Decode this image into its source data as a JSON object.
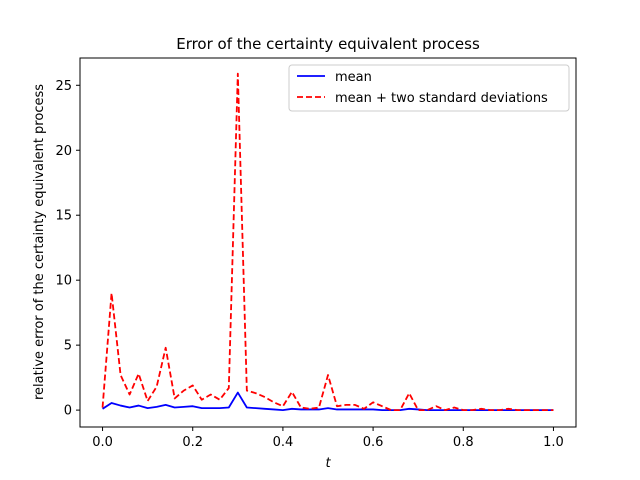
{
  "chart_data": {
    "type": "line",
    "title": "Error of the certainty equivalent process",
    "xlabel": "t",
    "ylabel": "relative error of the certainty equivalent process",
    "xlim": [
      -0.05,
      1.05
    ],
    "ylim": [
      -1.3,
      27.1
    ],
    "xticks": [
      0.0,
      0.2,
      0.4,
      0.6,
      0.8,
      1.0
    ],
    "xtick_labels": [
      "0.0",
      "0.2",
      "0.4",
      "0.6",
      "0.8",
      "1.0"
    ],
    "yticks": [
      0,
      5,
      10,
      15,
      20,
      25
    ],
    "ytick_labels": [
      "0",
      "5",
      "10",
      "15",
      "20",
      "25"
    ],
    "grid": false,
    "legend_position": "upper-right",
    "x": [
      0.0,
      0.02,
      0.04,
      0.06,
      0.08,
      0.1,
      0.12,
      0.14,
      0.16,
      0.18,
      0.2,
      0.22,
      0.24,
      0.26,
      0.28,
      0.3,
      0.32,
      0.34,
      0.36,
      0.38,
      0.4,
      0.42,
      0.44,
      0.46,
      0.48,
      0.5,
      0.52,
      0.54,
      0.56,
      0.58,
      0.6,
      0.62,
      0.64,
      0.66,
      0.68,
      0.7,
      0.72,
      0.74,
      0.76,
      0.78,
      0.8,
      0.82,
      0.84,
      0.86,
      0.88,
      0.9,
      0.92,
      0.94,
      0.96,
      0.98,
      1.0
    ],
    "series": [
      {
        "name": "mean",
        "color": "#0000ff",
        "style": "solid",
        "values": [
          0.1,
          0.55,
          0.35,
          0.2,
          0.35,
          0.15,
          0.25,
          0.4,
          0.2,
          0.25,
          0.3,
          0.15,
          0.15,
          0.15,
          0.2,
          1.35,
          0.2,
          0.15,
          0.1,
          0.05,
          0.0,
          0.1,
          0.05,
          0.05,
          0.05,
          0.15,
          0.05,
          0.05,
          0.05,
          0.05,
          0.05,
          0.0,
          0.0,
          0.0,
          0.1,
          0.05,
          0.0,
          0.0,
          0.0,
          0.0,
          0.0,
          0.0,
          0.0,
          0.0,
          0.0,
          0.0,
          0.0,
          0.0,
          0.0,
          0.0,
          0.0
        ]
      },
      {
        "name": "mean + two standard deviations",
        "color": "#ff0000",
        "style": "dashed",
        "values": [
          0.2,
          9.0,
          2.7,
          1.2,
          2.8,
          0.7,
          1.8,
          4.8,
          0.9,
          1.5,
          1.9,
          0.8,
          1.2,
          0.8,
          1.7,
          25.9,
          1.5,
          1.3,
          1.0,
          0.6,
          0.3,
          1.4,
          0.2,
          0.1,
          0.2,
          2.7,
          0.3,
          0.4,
          0.4,
          0.1,
          0.6,
          0.3,
          0.0,
          0.0,
          1.3,
          0.0,
          0.0,
          0.3,
          0.0,
          0.2,
          0.0,
          0.0,
          0.1,
          0.0,
          0.0,
          0.1,
          0.0,
          0.0,
          0.0,
          0.0,
          0.0
        ]
      }
    ]
  }
}
